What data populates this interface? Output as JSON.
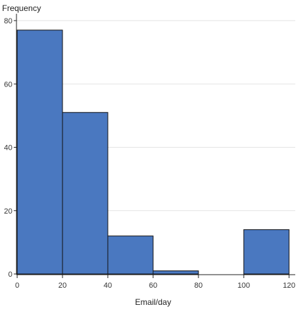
{
  "chart_data": {
    "type": "bar",
    "subtype": "histogram",
    "bins": [
      {
        "start": 0,
        "end": 20,
        "value": 77
      },
      {
        "start": 20,
        "end": 40,
        "value": 51
      },
      {
        "start": 40,
        "end": 60,
        "value": 12
      },
      {
        "start": 60,
        "end": 80,
        "value": 1
      },
      {
        "start": 80,
        "end": 100,
        "value": 0
      },
      {
        "start": 100,
        "end": 120,
        "value": 14
      }
    ],
    "xlabel": "Email/day",
    "ylabel": "Frequency",
    "xlim": [
      0,
      120
    ],
    "ylim": [
      0,
      82
    ],
    "xticks": [
      0,
      20,
      40,
      60,
      80,
      100,
      120
    ],
    "yticks": [
      0,
      20,
      40,
      60,
      80
    ],
    "grid": true,
    "colors": {
      "bar": "#4a78c0",
      "edge": "#111111",
      "grid": "#e3e3e3"
    }
  }
}
